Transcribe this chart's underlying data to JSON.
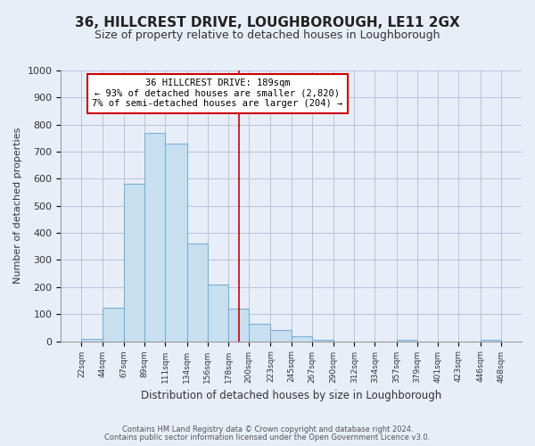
{
  "title": "36, HILLCREST DRIVE, LOUGHBOROUGH, LE11 2GX",
  "subtitle": "Size of property relative to detached houses in Loughborough",
  "xlabel": "Distribution of detached houses by size in Loughborough",
  "ylabel": "Number of detached properties",
  "bar_left_edges": [
    22,
    44,
    67,
    89,
    111,
    134,
    156,
    178,
    200,
    223,
    245,
    267,
    290,
    312,
    334,
    357,
    379,
    401,
    423,
    446
  ],
  "bar_heights": [
    10,
    125,
    580,
    770,
    730,
    360,
    210,
    120,
    65,
    42,
    18,
    5,
    0,
    0,
    0,
    5,
    0,
    0,
    0,
    5
  ],
  "bar_widths": [
    22,
    23,
    22,
    22,
    23,
    22,
    22,
    22,
    23,
    22,
    22,
    23,
    22,
    22,
    23,
    22,
    22,
    22,
    23,
    22
  ],
  "tick_labels": [
    "22sqm",
    "44sqm",
    "67sqm",
    "89sqm",
    "111sqm",
    "134sqm",
    "156sqm",
    "178sqm",
    "200sqm",
    "223sqm",
    "245sqm",
    "267sqm",
    "290sqm",
    "312sqm",
    "334sqm",
    "357sqm",
    "379sqm",
    "401sqm",
    "423sqm",
    "446sqm",
    "468sqm"
  ],
  "tick_positions": [
    22,
    44,
    67,
    89,
    111,
    134,
    156,
    178,
    200,
    223,
    245,
    267,
    290,
    312,
    334,
    357,
    379,
    401,
    423,
    446,
    468
  ],
  "bar_color": "#c8dff0",
  "bar_edge_color": "#7ab0d4",
  "vline_x": 189,
  "vline_color": "#cc0000",
  "annotation_title": "36 HILLCREST DRIVE: 189sqm",
  "annotation_line1": "← 93% of detached houses are smaller (2,820)",
  "annotation_line2": "7% of semi-detached houses are larger (204) →",
  "ylim": [
    0,
    1000
  ],
  "xlim": [
    0,
    490
  ],
  "footer1": "Contains HM Land Registry data © Crown copyright and database right 2024.",
  "footer2": "Contains public sector information licensed under the Open Government Licence v3.0.",
  "bg_color": "#e8eef8",
  "plot_bg_color": "#e8eef8",
  "title_fontsize": 11,
  "subtitle_fontsize": 9,
  "yticks": [
    0,
    100,
    200,
    300,
    400,
    500,
    600,
    700,
    800,
    900,
    1000
  ]
}
